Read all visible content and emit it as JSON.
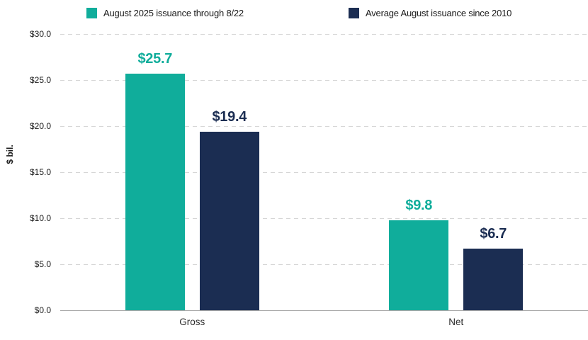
{
  "chart_data": {
    "type": "bar",
    "categories": [
      "Gross",
      "Net"
    ],
    "series": [
      {
        "name": "August 2025 issuance through 8/22",
        "color": "#10ad9b",
        "values": [
          25.7,
          9.8
        ],
        "value_labels": [
          "$25.7",
          "$9.8"
        ]
      },
      {
        "name": "Average August issuance since 2010",
        "color": "#1b2d52",
        "values": [
          19.4,
          6.7
        ],
        "value_labels": [
          "$19.4",
          "$6.7"
        ]
      }
    ],
    "title": "",
    "xlabel": "",
    "ylabel": "$ bil.",
    "ylim": [
      0,
      30
    ],
    "ytick_step": 5,
    "ytick_labels": [
      "$0.0",
      "$5.0",
      "$10.0",
      "$15.0",
      "$20.0",
      "$25.0",
      "$30.0"
    ],
    "grid": "horizontal-dashed",
    "legend_position": "top"
  },
  "colors": {
    "teal": "#10ad9b",
    "navy": "#1b2d52",
    "gridline": "#d6d6d6",
    "axis_line": "#a8a8a8",
    "tick_text": "#1c1c1c"
  }
}
